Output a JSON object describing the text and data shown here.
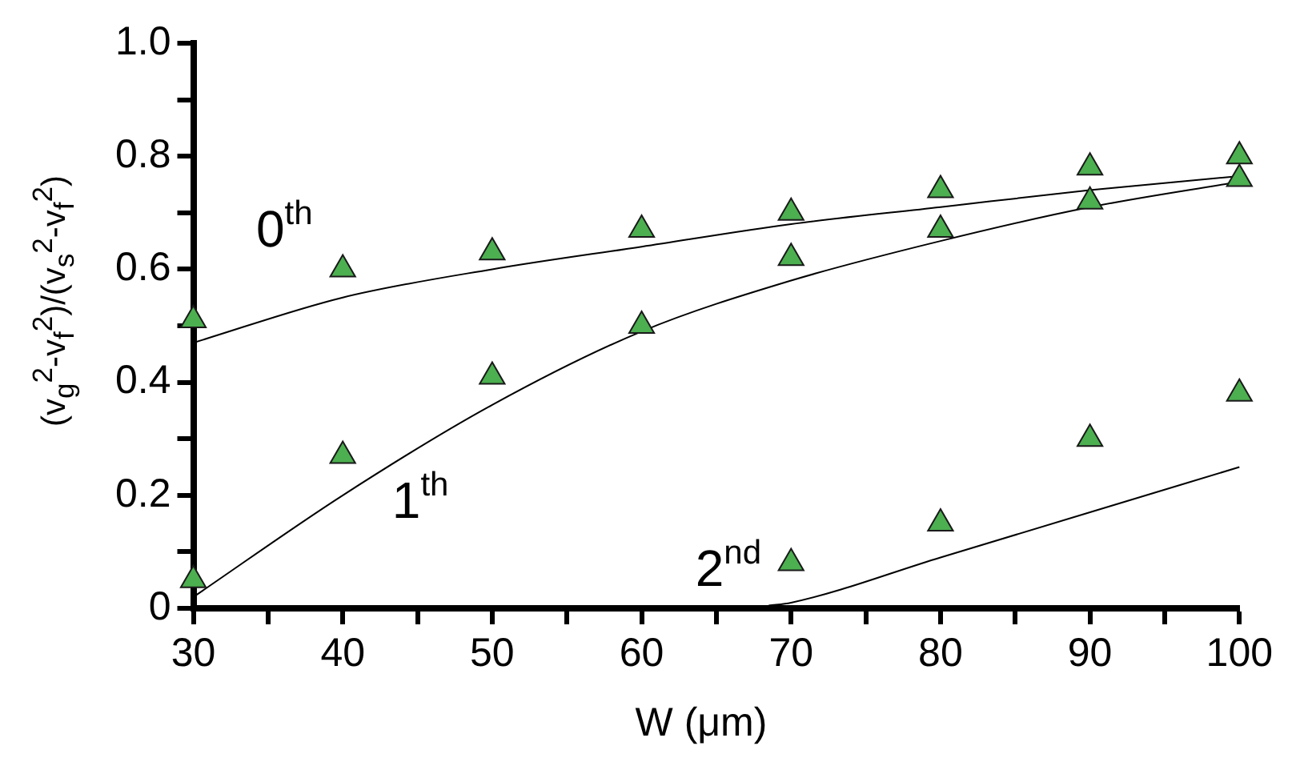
{
  "chart_data": {
    "type": "scatter",
    "xlabel": "W (μm)",
    "ylabel": "(v$_{g}$$^{2}$-v$_{f}$$^{2}$)/(v$_{s}$$^{2}$-v$_{f}$$^{2}$)",
    "xlim": [
      30,
      100
    ],
    "xticks": [
      30,
      {
        "value": 35,
        "label": null
      },
      40,
      {
        "value": 45,
        "label": null
      },
      50,
      {
        "value": 55,
        "label": null
      },
      60,
      {
        "value": 65,
        "label": null
      },
      70,
      {
        "value": 75,
        "label": null
      },
      80,
      {
        "value": 85,
        "label": null
      },
      90,
      {
        "value": 95,
        "label": null
      },
      100
    ],
    "ylim": [
      0,
      1
    ],
    "yticks": [
      {
        "value": 0,
        "label": "0"
      },
      {
        "value": 0.1,
        "label": null
      },
      0.2,
      {
        "value": 0.3,
        "label": null
      },
      0.4,
      {
        "value": 0.5,
        "label": null
      },
      0.6,
      {
        "value": 0.7,
        "label": null
      },
      0.8,
      {
        "value": 0.9,
        "label": null
      },
      {
        "value": 1,
        "label": "1.0"
      }
    ],
    "grid": false,
    "legend": false,
    "marker": "triangle",
    "series": [
      {
        "color": "#4caf50",
        "x": [
          30,
          40,
          50,
          60,
          70,
          80,
          90,
          100
        ],
        "values": [
          0.51,
          0.6,
          0.63,
          0.67,
          0.7,
          0.74,
          0.78,
          0.8
        ]
      },
      {
        "color": "#4caf50",
        "x": [
          30,
          40,
          50,
          60,
          70,
          80,
          90,
          100
        ],
        "values": [
          0.05,
          0.27,
          0.41,
          0.5,
          0.62,
          0.67,
          0.72,
          0.76
        ]
      },
      {
        "color": "#4caf50",
        "x": [
          70,
          80,
          90,
          100
        ],
        "values": [
          0.08,
          0.15,
          0.3,
          0.38
        ]
      },
      {
        "type": "line",
        "color": "#000000",
        "marker": "none",
        "x": [
          30,
          40,
          50,
          60,
          70,
          80,
          90,
          100
        ],
        "values": [
          0.47,
          0.55,
          0.6,
          0.64,
          0.68,
          0.71,
          0.74,
          0.765
        ]
      },
      {
        "type": "line",
        "color": "#000000",
        "marker": "none",
        "x": [
          30,
          40,
          50,
          60,
          70,
          80,
          90,
          100
        ],
        "values": [
          0.02,
          0.2,
          0.36,
          0.49,
          0.58,
          0.65,
          0.71,
          0.755
        ]
      },
      {
        "type": "line",
        "color": "#000000",
        "marker": "none",
        "x": [
          68.5,
          70,
          80,
          90,
          100
        ],
        "values": [
          0.005,
          0.01,
          0.09,
          0.17,
          0.25
        ]
      }
    ],
    "annotations": [
      "0$^{th}$",
      "1$^{th}$",
      "2$^{nd}$"
    ]
  }
}
